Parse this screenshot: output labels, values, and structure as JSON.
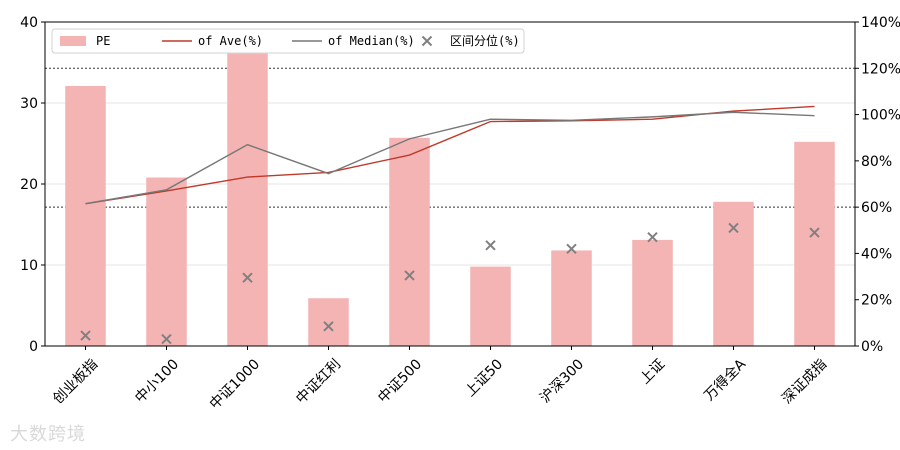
{
  "chart_data": {
    "type": "bar",
    "categories": [
      "创业板指",
      "中小100",
      "中证1000",
      "中证红利",
      "中证500",
      "上证50",
      "沪深300",
      "上证",
      "万得全A",
      "深证成指"
    ],
    "series": [
      {
        "name": "PE",
        "kind": "bar",
        "axis": "left",
        "color": "#f4b4b4",
        "values": [
          32.1,
          20.8,
          36.1,
          5.9,
          25.7,
          9.8,
          11.8,
          13.1,
          17.8,
          25.2
        ]
      },
      {
        "name": "of Ave(%)",
        "kind": "line",
        "axis": "right",
        "color": "#c0392b",
        "values": [
          61.5,
          67.0,
          73.0,
          75.0,
          82.5,
          97.0,
          97.3,
          98.0,
          101.5,
          103.5
        ]
      },
      {
        "name": "of Median(%)",
        "kind": "line",
        "axis": "right",
        "color": "#777777",
        "values": [
          61.5,
          67.5,
          87.0,
          74.5,
          89.5,
          98.0,
          97.5,
          99.0,
          101.0,
          99.5
        ]
      },
      {
        "name": "区间分位(%)",
        "kind": "scatter",
        "axis": "right",
        "color": "#808080",
        "values": [
          4.5,
          3.0,
          29.5,
          8.5,
          30.5,
          43.5,
          42.0,
          47.0,
          51.0,
          49.0
        ]
      }
    ],
    "ylim_left": [
      0,
      40
    ],
    "yticks_left": [
      "0",
      "10",
      "20",
      "30",
      "40"
    ],
    "ylim_right": [
      0,
      140
    ],
    "yticks_right": [
      "0%",
      "20%",
      "40%",
      "60%",
      "80%",
      "100%",
      "120%",
      "140%"
    ],
    "reference_lines_right": [
      60,
      120
    ],
    "grid": "horizontal",
    "legend_position": "top-left"
  },
  "watermark": "大数跨境"
}
